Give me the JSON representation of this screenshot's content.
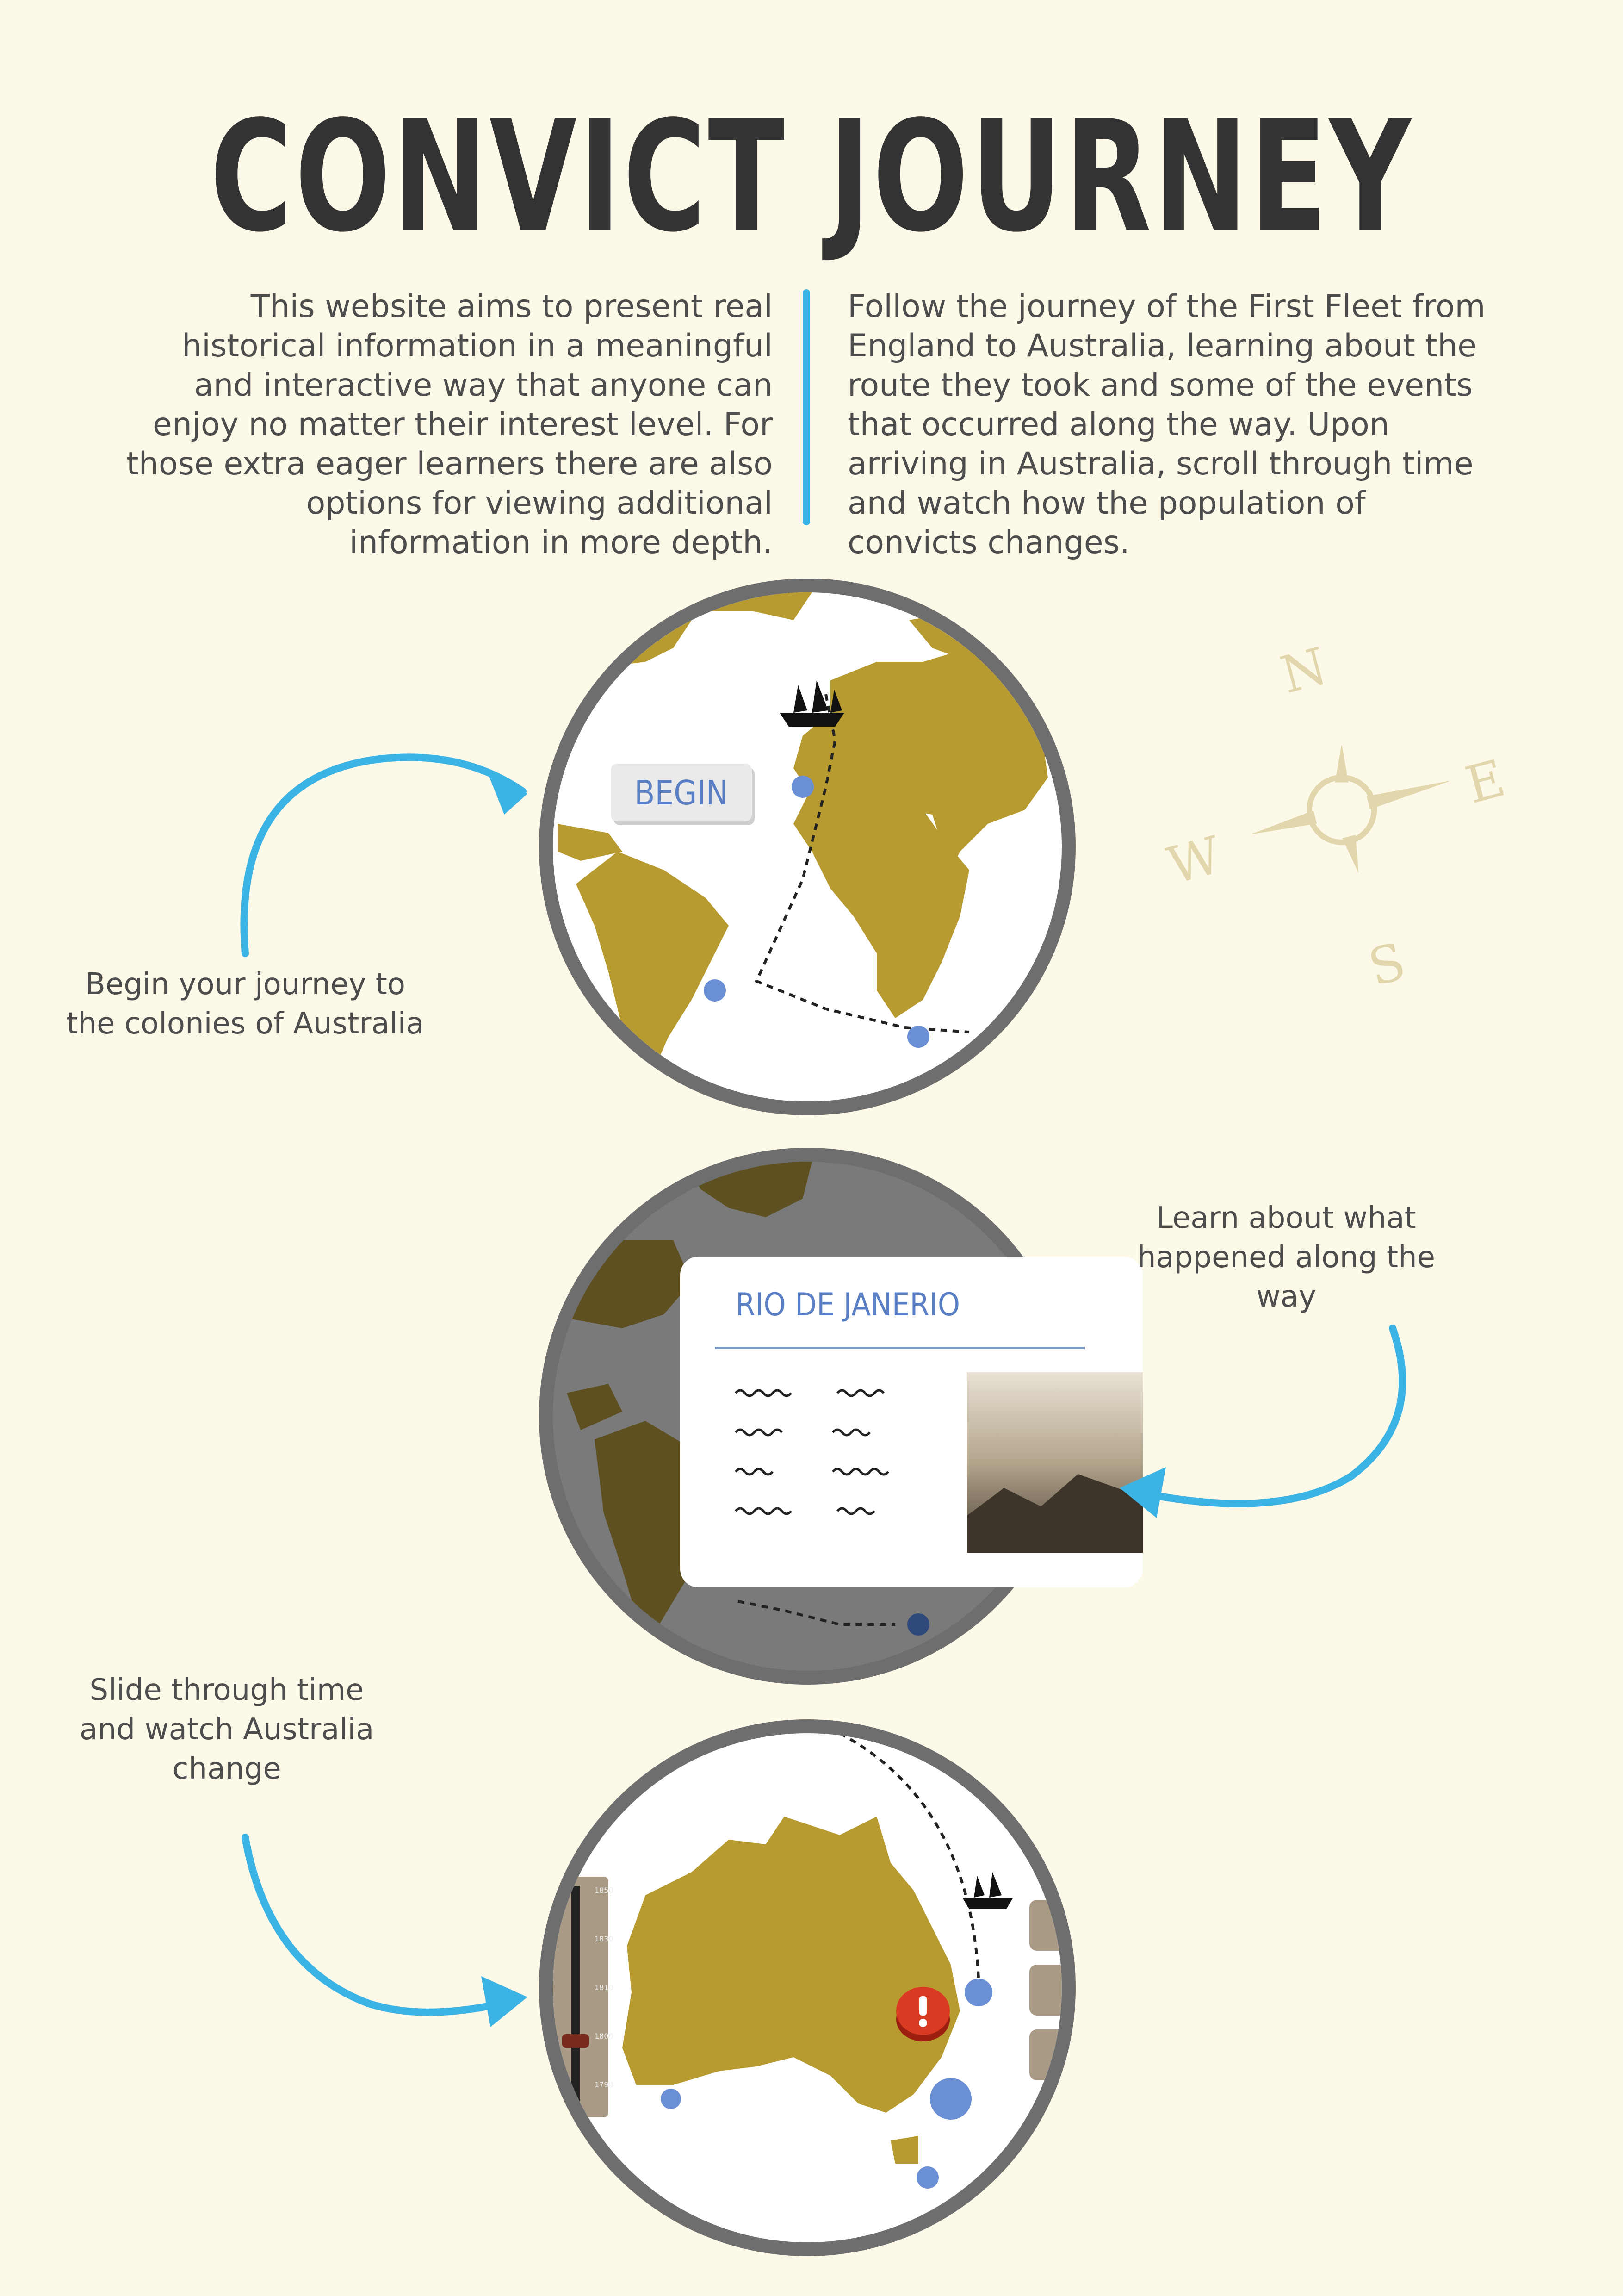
{
  "page": {
    "title": "CONVICT JOURNEY",
    "intro_left": "This website aims to present real historical information in a meaningful and interactive way that anyone can enjoy no matter their interest level. For those extra eager learners there are also options for viewing additional information in more depth.",
    "intro_right": "Follow the journey of the First Fleet from England to Australia, learning about the route they took and some of the events that occurred along the way. Upon arriving in Australia, scroll through time and watch how the population of convicts changes."
  },
  "captions": {
    "begin": "Begin your journey to the colonies of Australia",
    "learn": "Learn about what happened along the way",
    "slide": "Slide through time and watch Australia change"
  },
  "screens": {
    "begin_button": "BEGIN",
    "info_card_title": "RIO DE JANERIO",
    "timeline_years": [
      "1850",
      "1830",
      "1810",
      "1800",
      "1790"
    ]
  },
  "compass": {
    "n": "N",
    "e": "E",
    "s": "S",
    "w": "W"
  },
  "colors": {
    "background": "#fdf9e8",
    "land": "#b89b30",
    "accent_blue": "#3bb3e4",
    "marker_blue": "#6b8fd4",
    "frame": "#6e6e6e"
  },
  "icons": [
    "ship-icon",
    "alert-icon",
    "compass-icon",
    "arrow-icon"
  ]
}
